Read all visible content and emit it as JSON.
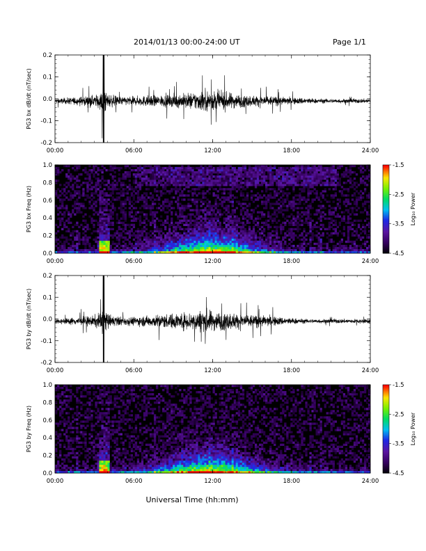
{
  "header": {
    "title": "2014/01/13  00:00-24:00 UT",
    "page": "Page 1/1"
  },
  "x_axis_title": "Universal Time (hh:mm)",
  "colorbar": {
    "label": "Log₁₀ Power",
    "ticks": [
      "-1.5",
      "-2.5",
      "-3.5",
      "-4.5"
    ]
  },
  "chart_data": [
    {
      "type": "line",
      "ylabel": "PG3 bx dB/dt (nT/sec)",
      "xlim": [
        0,
        24
      ],
      "ylim": [
        -0.2,
        0.2
      ],
      "x_ticks": [
        "00:00",
        "06:00",
        "12:00",
        "18:00",
        "24:00"
      ],
      "y_ticks": [
        "0.2",
        "0.1",
        "0.0",
        "-0.1",
        "-0.2"
      ],
      "series": [
        {
          "x": [
            0,
            1,
            2,
            3,
            3.5,
            3.7,
            3.9,
            4.5,
            5,
            6,
            7,
            8,
            9,
            10,
            11,
            11.5,
            12,
            13,
            14,
            15,
            16,
            17,
            18,
            19,
            20,
            21,
            22,
            23,
            24
          ],
          "envelope": [
            0.02,
            0.03,
            0.04,
            0.05,
            0.08,
            0.2,
            0.07,
            0.05,
            0.04,
            0.04,
            0.05,
            0.05,
            0.06,
            0.07,
            0.09,
            0.1,
            0.09,
            0.08,
            0.06,
            0.05,
            0.05,
            0.04,
            0.03,
            0.03,
            0.02,
            0.02,
            0.02,
            0.02,
            0.02
          ]
        }
      ]
    },
    {
      "type": "heatmap",
      "ylabel": "PG3 bx Freq (Hz)",
      "xlim": [
        0,
        24
      ],
      "ylim": [
        0.0,
        1.0
      ],
      "zlim": [
        -4.5,
        -1.5
      ],
      "x_ticks": [
        "00:00",
        "06:00",
        "12:00",
        "18:00",
        "24:00"
      ],
      "y_ticks": [
        "1.0",
        "0.8",
        "0.6",
        "0.4",
        "0.2",
        "0.0"
      ]
    },
    {
      "type": "line",
      "ylabel": "PG3 by dB/dt (nT/sec)",
      "xlim": [
        0,
        24
      ],
      "ylim": [
        -0.2,
        0.2
      ],
      "x_ticks": [
        "00:00",
        "06:00",
        "12:00",
        "18:00",
        "24:00"
      ],
      "y_ticks": [
        "0.2",
        "0.1",
        "0.0",
        "-0.1",
        "-0.2"
      ],
      "series": [
        {
          "x": [
            0,
            1,
            2,
            3,
            3.5,
            3.7,
            3.9,
            4.5,
            5,
            6,
            7,
            8,
            9,
            10,
            11,
            11.5,
            12,
            13,
            14,
            15,
            16,
            17,
            18,
            19,
            20,
            21,
            22,
            23,
            24
          ],
          "envelope": [
            0.02,
            0.03,
            0.04,
            0.05,
            0.09,
            0.18,
            0.07,
            0.05,
            0.04,
            0.04,
            0.05,
            0.06,
            0.07,
            0.08,
            0.1,
            0.11,
            0.09,
            0.08,
            0.07,
            0.06,
            0.05,
            0.04,
            0.03,
            0.02,
            0.02,
            0.02,
            0.02,
            0.02,
            0.02
          ]
        }
      ]
    },
    {
      "type": "heatmap",
      "ylabel": "PG3 by Freq (Hz)",
      "xlim": [
        0,
        24
      ],
      "ylim": [
        0.0,
        1.0
      ],
      "zlim": [
        -4.5,
        -1.5
      ],
      "x_ticks": [
        "00:00",
        "06:00",
        "12:00",
        "18:00",
        "24:00"
      ],
      "y_ticks": [
        "1.0",
        "0.8",
        "0.6",
        "0.4",
        "0.2",
        "0.0"
      ]
    }
  ]
}
